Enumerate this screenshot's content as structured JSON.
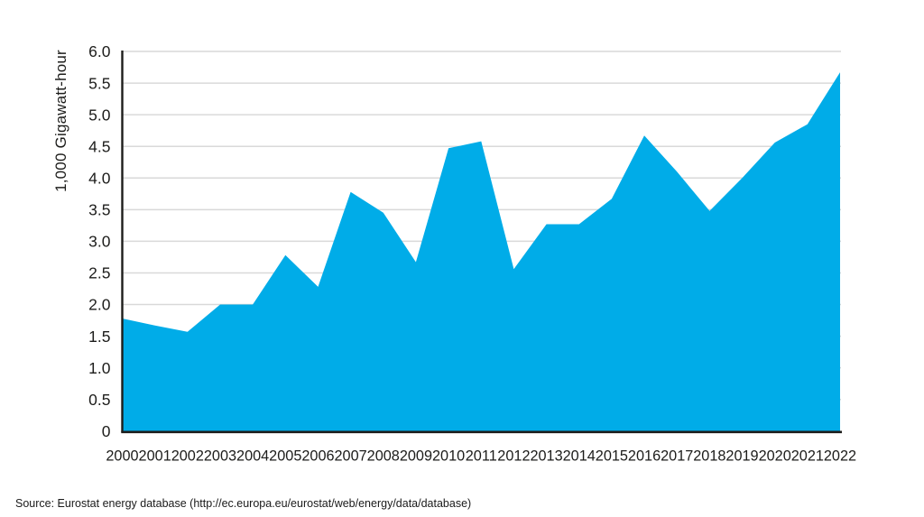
{
  "chart_data": {
    "type": "area",
    "title": "",
    "xlabel": "",
    "ylabel": "1,000 Gigawatt-hour",
    "categories": [
      "2000",
      "2001",
      "2002",
      "2003",
      "2004",
      "2005",
      "2006",
      "2007",
      "2008",
      "2009",
      "2010",
      "2011",
      "2012",
      "2013",
      "2014",
      "2015",
      "2016",
      "2017",
      "2018",
      "2019",
      "2020",
      "2021",
      "2022"
    ],
    "values": [
      1.78,
      1.67,
      1.57,
      2.0,
      2.0,
      2.78,
      2.28,
      3.78,
      3.45,
      2.67,
      4.47,
      4.58,
      2.56,
      3.27,
      3.27,
      3.67,
      4.67,
      4.1,
      3.48,
      4.0,
      4.56,
      4.85,
      5.67
    ],
    "ylim": [
      0,
      6
    ],
    "yticks": [
      {
        "value": 0,
        "label": "0"
      },
      {
        "value": 0.5,
        "label": "0.5"
      },
      {
        "value": 1,
        "label": "1.0"
      },
      {
        "value": 1.5,
        "label": "1.5"
      },
      {
        "value": 2,
        "label": "2.0"
      },
      {
        "value": 2.5,
        "label": "2.5"
      },
      {
        "value": 3,
        "label": "3.0"
      },
      {
        "value": 3.5,
        "label": "3.5"
      },
      {
        "value": 4,
        "label": "4.0"
      },
      {
        "value": 4.5,
        "label": "4.5"
      },
      {
        "value": 5,
        "label": "5.0"
      },
      {
        "value": 5.5,
        "label": "5.5"
      },
      {
        "value": 6,
        "label": "6.0"
      }
    ],
    "grid": "horizontal",
    "legend": "none",
    "colors": {
      "area_fill": "#00ACE8",
      "axis": "#1d1d1b",
      "gridline": "#d9d9d9",
      "text": "#1d1d1b"
    }
  },
  "source_note": "Source: Eurostat energy database (http://ec.europa.eu/eurostat/web/energy/data/database)"
}
